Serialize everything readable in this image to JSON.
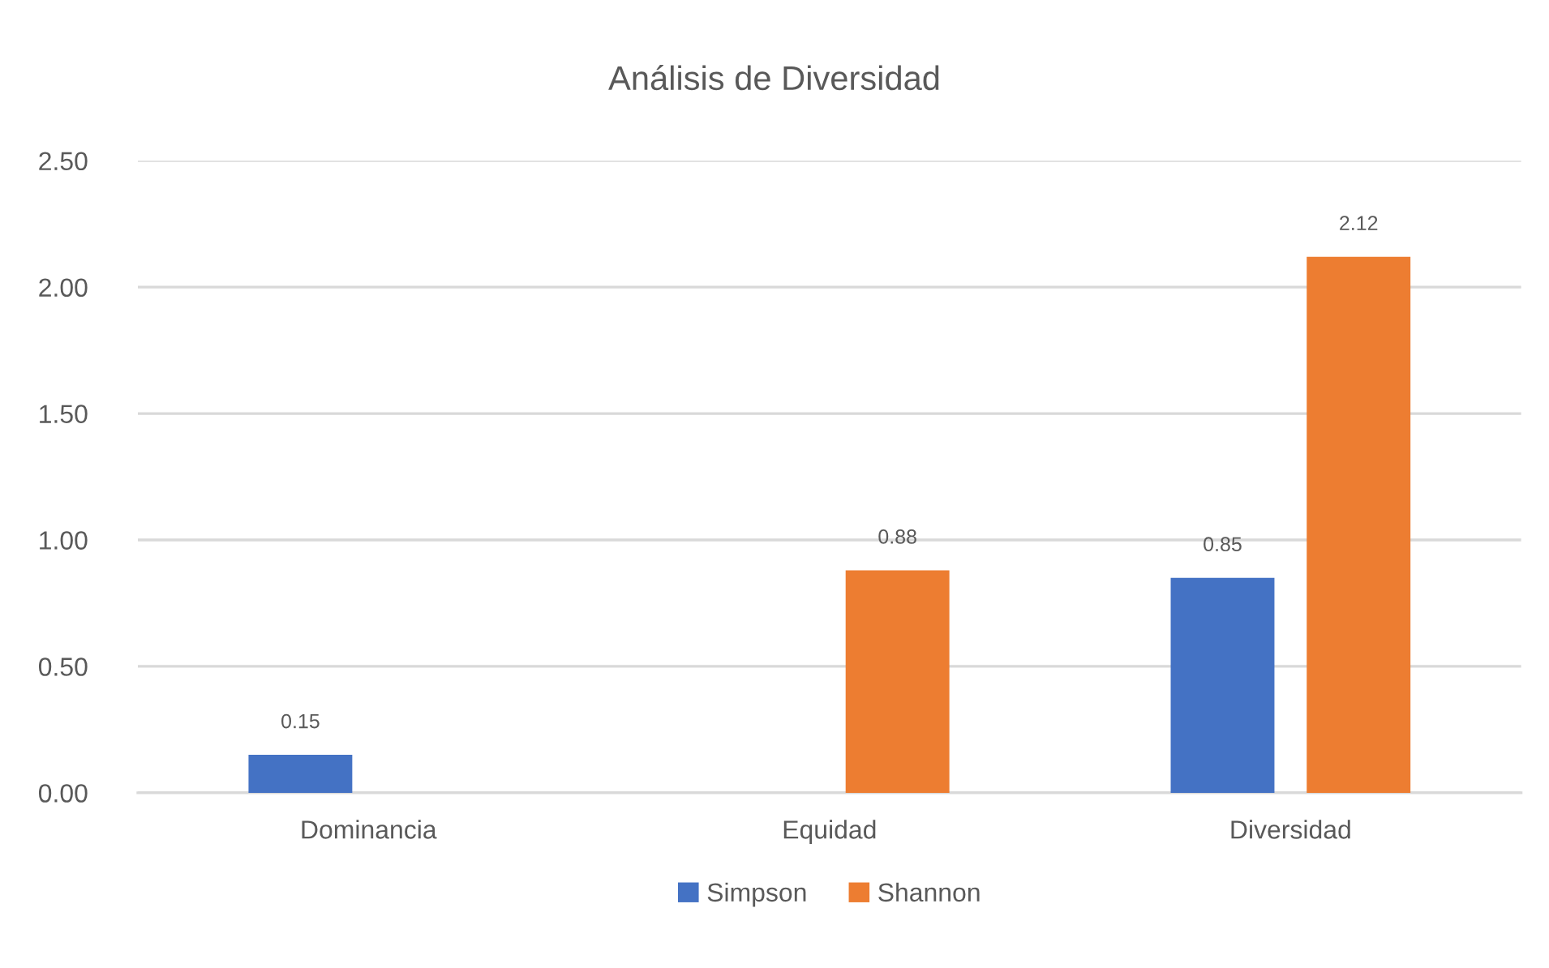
{
  "chart_data": {
    "type": "bar",
    "title": "Análisis de Diversidad",
    "categories": [
      "Dominancia",
      "Equidad",
      "Diversidad"
    ],
    "series": [
      {
        "name": "Simpson",
        "color": "#4472c4",
        "values": [
          0.15,
          null,
          0.85
        ]
      },
      {
        "name": "Shannon",
        "color": "#ed7d31",
        "values": [
          null,
          0.88,
          2.12
        ]
      }
    ],
    "ylim": [
      0,
      2.5
    ],
    "yticks": [
      {
        "value": 0,
        "label": "0.00"
      },
      {
        "value": 0.5,
        "label": "0.50"
      },
      {
        "value": 1,
        "label": "1.00"
      },
      {
        "value": 1.5,
        "label": "1.50"
      },
      {
        "value": 2,
        "label": "2.00"
      },
      {
        "value": 2.5,
        "label": "2.50"
      }
    ],
    "grid": "y",
    "legend": "bottom",
    "data_labels": true
  }
}
